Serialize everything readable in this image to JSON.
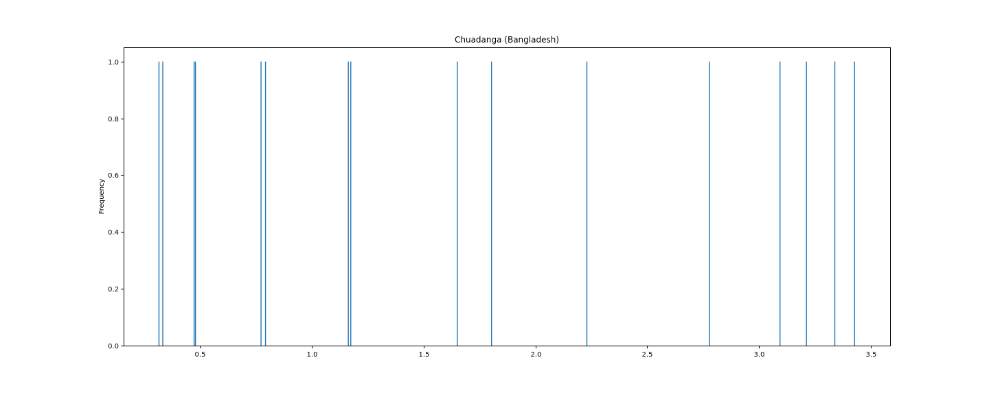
{
  "chart_data": {
    "type": "bar",
    "title": "Chuadanga (Bangladesh)",
    "xlabel": "",
    "ylabel": "Frequency",
    "xlim": [
      0.16,
      3.585
    ],
    "ylim": [
      0,
      1.05
    ],
    "xticks": [
      0.5,
      1.0,
      1.5,
      2.0,
      2.5,
      3.0,
      3.5
    ],
    "xtick_labels": [
      "0.5",
      "1.0",
      "1.5",
      "2.0",
      "2.5",
      "3.0",
      "3.5"
    ],
    "yticks": [
      0.0,
      0.2,
      0.4,
      0.6,
      0.8,
      1.0
    ],
    "ytick_labels": [
      "0.0",
      "0.2",
      "0.4",
      "0.6",
      "0.8",
      "1.0"
    ],
    "grid": false,
    "bar_color": "#1f77b4",
    "bars": [
      {
        "x": 0.318,
        "count": 1
      },
      {
        "x": 0.335,
        "count": 1
      },
      {
        "x": 0.475,
        "count": 1
      },
      {
        "x": 0.481,
        "count": 1
      },
      {
        "x": 0.774,
        "count": 1
      },
      {
        "x": 0.794,
        "count": 1
      },
      {
        "x": 1.164,
        "count": 1
      },
      {
        "x": 1.175,
        "count": 1
      },
      {
        "x": 1.651,
        "count": 1
      },
      {
        "x": 1.804,
        "count": 1
      },
      {
        "x": 2.23,
        "count": 1
      },
      {
        "x": 2.778,
        "count": 1
      },
      {
        "x": 3.093,
        "count": 1
      },
      {
        "x": 3.211,
        "count": 1
      },
      {
        "x": 3.338,
        "count": 1
      },
      {
        "x": 3.426,
        "count": 1
      }
    ]
  }
}
